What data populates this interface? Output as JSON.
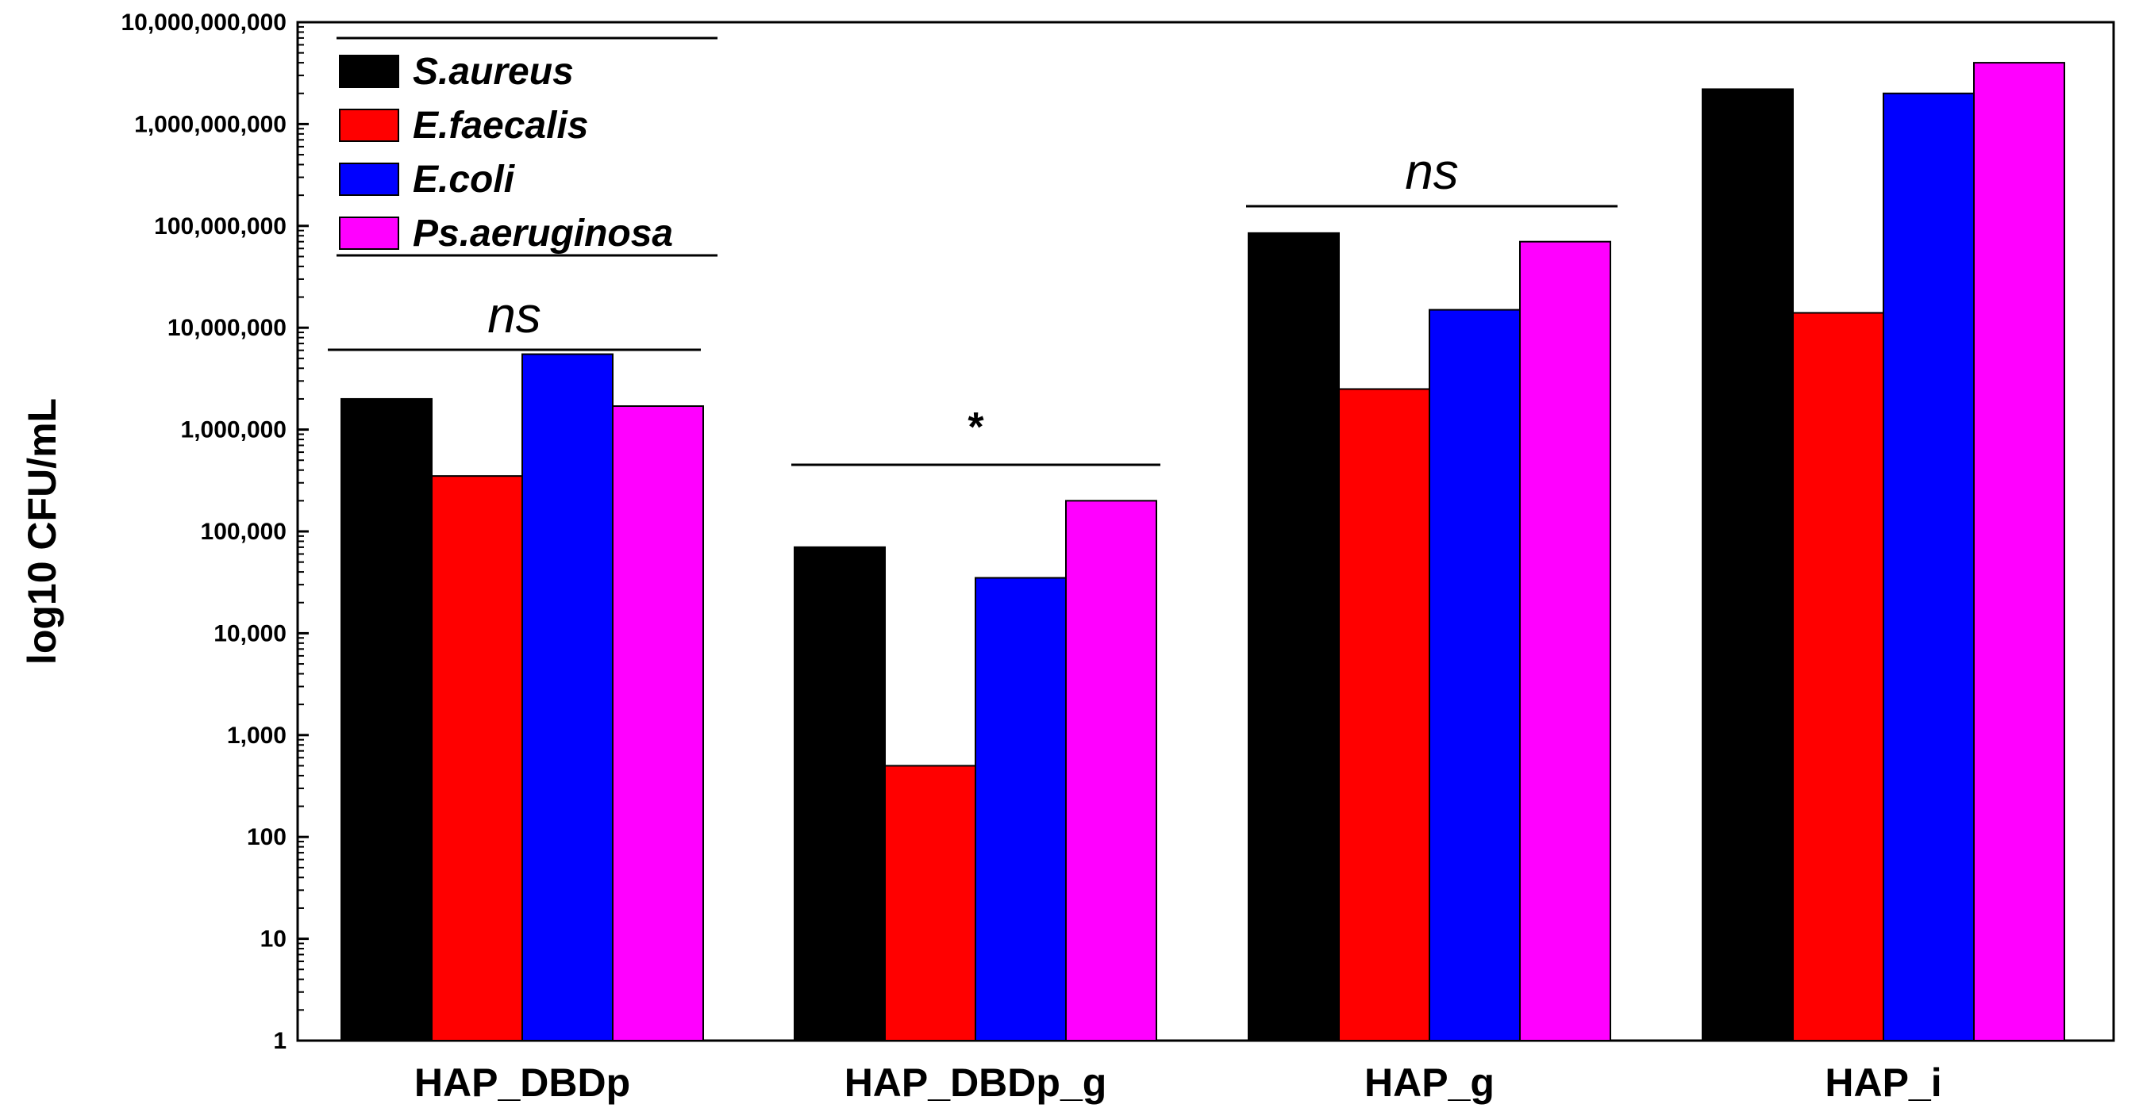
{
  "chart_data": {
    "type": "bar",
    "scale": "log",
    "ylabel": "log10 CFU/mL",
    "xlabel": "",
    "ylim": [
      1,
      10000000000
    ],
    "yticks": [
      {
        "value": 1,
        "label": "1"
      },
      {
        "value": 10,
        "label": "10"
      },
      {
        "value": 100,
        "label": "100"
      },
      {
        "value": 1000,
        "label": "1,000"
      },
      {
        "value": 10000,
        "label": "10,000"
      },
      {
        "value": 100000,
        "label": "100,000"
      },
      {
        "value": 1000000,
        "label": "1,000,000"
      },
      {
        "value": 10000000,
        "label": "10,000,000"
      },
      {
        "value": 100000000,
        "label": "100,000,000"
      },
      {
        "value": 1000000000,
        "label": "1,000,000,000"
      },
      {
        "value": 10000000000,
        "label": "10,000,000,000"
      }
    ],
    "categories": [
      "HAP_DBDp",
      "HAP_DBDp_g",
      "HAP_g",
      "HAP_i"
    ],
    "series": [
      {
        "name": "S.aureus",
        "color": "#000000",
        "values": [
          2000000,
          70000,
          85000000,
          2200000000
        ]
      },
      {
        "name": "E.faecalis",
        "color": "#ff0000",
        "values": [
          350000,
          500,
          2500000,
          14000000
        ]
      },
      {
        "name": "E.coli",
        "color": "#0000ff",
        "values": [
          5500000,
          35000,
          15000000,
          2000000000
        ]
      },
      {
        "name": "Ps.aeruginosa",
        "color": "#ff00ff",
        "values": [
          1700000,
          200000,
          70000000,
          4000000000
        ]
      }
    ],
    "legend_position": "top-left",
    "annotations": [
      {
        "category_index": 0,
        "text": "ns"
      },
      {
        "category_index": 1,
        "text": "*"
      },
      {
        "category_index": 2,
        "text": "ns"
      }
    ]
  }
}
